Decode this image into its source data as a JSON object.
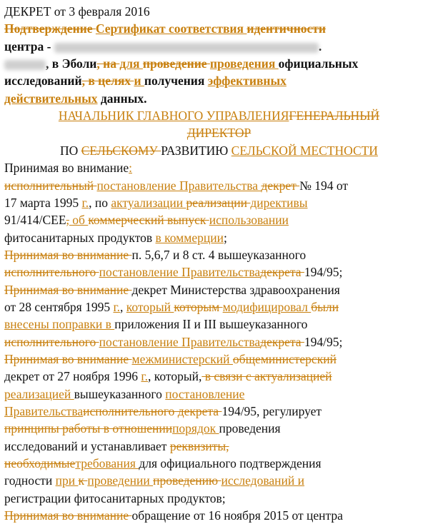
{
  "lines": [
    [
      "ДЕКРЕТ от 3 февраля 2016"
    ],
    [
      "Подтверждение ",
      "Сертификат соответствия ",
      "идентичности"
    ],
    [
      "центра - ",
      "."
    ],
    [
      ", в Эболи",
      ", на ",
      "для ",
      "проведение ",
      "проведения ",
      "официальных"
    ],
    [
      "исследований",
      ", в целях ",
      "и ",
      "получения ",
      "эффективных"
    ],
    [
      "действительных",
      " данных."
    ],
    [
      "НАЧАЛЬНИК ГЛАВНОГО УПРАВЛЕНИЯ",
      "ГЕНЕРАЛЬНЫЙ"
    ],
    [
      "ДИРЕКТОР"
    ],
    [
      "ПО ",
      "СЕЛЬСКОМУ ",
      "РАЗВИТИЮ ",
      "СЕЛЬСКОЙ МЕСТНОСТИ"
    ],
    [
      "Принимая во внимание",
      ":"
    ],
    [
      "исполнительный ",
      "постановление Правительства ",
      "декрет ",
      " ",
      "№ 194 от"
    ],
    [
      "17 марта 1995 ",
      "г.",
      ", по ",
      "актуализации ",
      "реализации ",
      "директивы"
    ],
    [
      "91/414/CEE",
      ",",
      " об ",
      "коммерческий выпуск ",
      "использовании"
    ],
    [
      "фитосанитарных продуктов ",
      "в коммерции",
      ";"
    ],
    [
      "Принимая во внимание ",
      "п. 5,6,7 и 8 ст. 4 вышеуказанного"
    ],
    [
      "исполнительного ",
      "постановление Правительства",
      "декрета ",
      "194/95;"
    ],
    [
      "Принимая во внимание ",
      "декрет Министерства здравоохранения"
    ],
    [
      "от 28 сентября 1995 ",
      "г.",
      ", ",
      "который ",
      "которым ",
      "модифицировал ",
      "были"
    ],
    [
      "внесены поправки в ",
      "приложения II и III вышеуказанного"
    ],
    [
      "исполнительного ",
      "постановление Правительства",
      "декрета ",
      "194/95;"
    ],
    [
      "Принимая во внимание ",
      "межминистерский ",
      "общеминистерский"
    ],
    [
      "декрет от 27 ноября 1996 ",
      "г.",
      ", который",
      ",",
      " в связи с ",
      "актуализацией"
    ],
    [
      "реализацией ",
      "вышеуказанного ",
      "постановление"
    ],
    [
      "Правительства",
      "исполнительного декрета ",
      "194/95, регулирует"
    ],
    [
      "принципы работы в отношении",
      "порядок ",
      "проведения"
    ],
    [
      "исследований и устанавливает ",
      "реквизиты,"
    ],
    [
      "необходимые",
      "требования ",
      "для официального подтверждения"
    ],
    [
      "годности ",
      "при ",
      "к ",
      "проведении ",
      "проведению ",
      "исследований и"
    ],
    [
      "регистрации фитосанитарных продуктов;"
    ],
    [
      "Принимая во внимание ",
      "обращение от 16 ноября 2015 от центра"
    ]
  ]
}
